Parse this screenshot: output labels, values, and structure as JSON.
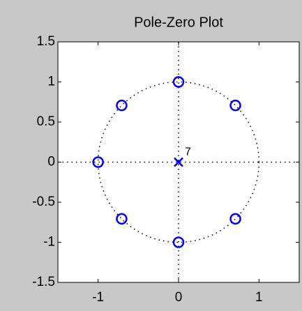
{
  "chart_data": {
    "type": "scatter",
    "title": "Pole-Zero Plot",
    "xlim": [
      -1.5,
      1.5
    ],
    "ylim": [
      -1.5,
      1.5
    ],
    "xticks": [
      -1,
      0,
      1
    ],
    "yticks": [
      -1.5,
      -1,
      -0.5,
      0,
      0.5,
      1,
      1.5
    ],
    "series": [
      {
        "marker": "o",
        "color": "#0000ff",
        "x": [
          0,
          0.7071,
          -0.7071,
          -1,
          -0.7071,
          0,
          0.7071
        ],
        "values": [
          1,
          0.7071,
          0.7071,
          0,
          -0.7071,
          -1,
          -0.7071
        ]
      },
      {
        "marker": "x",
        "color": "#0000ff",
        "x": [
          0
        ],
        "values": [
          0
        ],
        "multiplicity": 7
      }
    ]
  }
}
